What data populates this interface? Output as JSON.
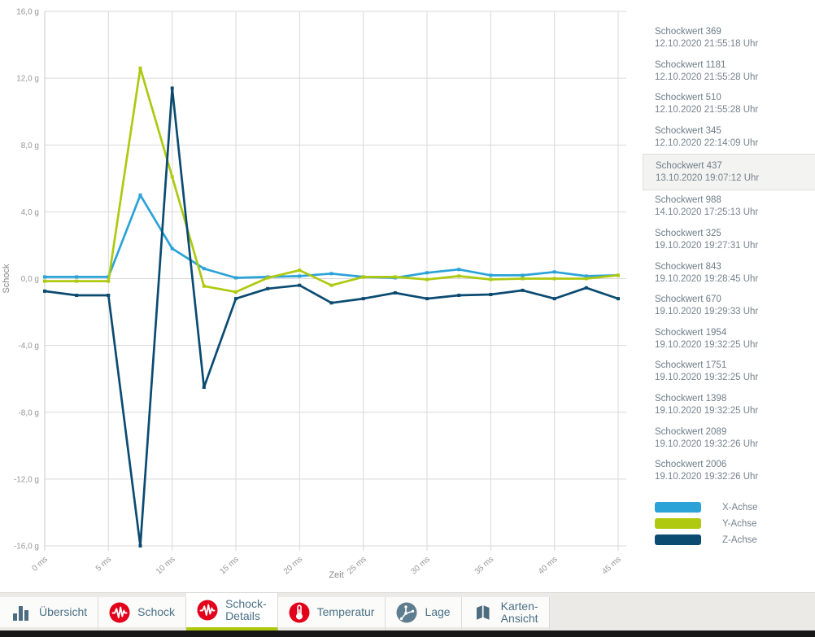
{
  "chart_data": {
    "type": "line",
    "title": "",
    "xlabel": "Zeit",
    "ylabel": "Schock",
    "grid": true,
    "legend_position": "bottom-right",
    "xlim": [
      0,
      45
    ],
    "ylim": [
      -16,
      16
    ],
    "x": [
      0,
      2.5,
      5,
      7.5,
      10,
      12.5,
      15,
      17.5,
      20,
      22.5,
      25,
      27.5,
      30,
      32.5,
      35,
      37.5,
      40,
      42.5,
      45
    ],
    "x_tick_values": [
      0,
      5,
      10,
      15,
      20,
      25,
      30,
      35,
      40,
      45
    ],
    "x_ticks": [
      "0 ms",
      "5 ms",
      "10 ms",
      "15 ms",
      "20 ms",
      "25 ms",
      "30 ms",
      "35 ms",
      "40 ms",
      "45 ms"
    ],
    "y_tick_values": [
      16,
      12,
      8,
      4,
      0,
      -4,
      -8,
      -12,
      -16
    ],
    "y_ticks": [
      "16,0 g",
      "12,0 g",
      "8,0 g",
      "4,0 g",
      "0,0 g",
      "-4,0 g",
      "-8,0 g",
      "-12,0 g",
      "-16,0 g"
    ],
    "series": [
      {
        "name": "X-Achse",
        "color": "#2ba3d9",
        "values": [
          0.1,
          0.1,
          0.1,
          5.0,
          1.8,
          0.6,
          0.05,
          0.1,
          0.15,
          0.3,
          0.1,
          0.05,
          0.35,
          0.55,
          0.2,
          0.2,
          0.4,
          0.15,
          0.2
        ]
      },
      {
        "name": "Y-Achse",
        "color": "#aec90f",
        "values": [
          -0.15,
          -0.15,
          -0.15,
          12.6,
          6.1,
          -0.45,
          -0.8,
          0.05,
          0.5,
          -0.4,
          0.1,
          0.1,
          -0.05,
          0.15,
          -0.05,
          0.0,
          0.0,
          0.0,
          0.2
        ]
      },
      {
        "name": "Z-Achse",
        "color": "#0b4b72",
        "values": [
          -0.75,
          -1.0,
          -1.0,
          -16.0,
          11.4,
          -6.5,
          -1.2,
          -0.6,
          -0.4,
          -1.45,
          -1.2,
          -0.85,
          -1.2,
          -1.0,
          -0.95,
          -0.7,
          -1.2,
          -0.55,
          -1.2
        ]
      }
    ]
  },
  "event_list": {
    "items": [
      {
        "label": "Schockwert 369",
        "time": "12.10.2020 21:55:18 Uhr",
        "selected": false
      },
      {
        "label": "Schockwert 1181",
        "time": "12.10.2020 21:55:28 Uhr",
        "selected": false
      },
      {
        "label": "Schockwert 510",
        "time": "12.10.2020 21:55:28 Uhr",
        "selected": false
      },
      {
        "label": "Schockwert 345",
        "time": "12.10.2020 22:14:09 Uhr",
        "selected": false
      },
      {
        "label": "Schockwert 437",
        "time": "13.10.2020 19:07:12 Uhr",
        "selected": true
      },
      {
        "label": "Schockwert 988",
        "time": "14.10.2020 17:25:13 Uhr",
        "selected": false
      },
      {
        "label": "Schockwert 325",
        "time": "19.10.2020 19:27:31 Uhr",
        "selected": false
      },
      {
        "label": "Schockwert 843",
        "time": "19.10.2020 19:28:45 Uhr",
        "selected": false
      },
      {
        "label": "Schockwert 670",
        "time": "19.10.2020 19:29:33 Uhr",
        "selected": false
      },
      {
        "label": "Schockwert 1954",
        "time": "19.10.2020 19:32:25 Uhr",
        "selected": false
      },
      {
        "label": "Schockwert 1751",
        "time": "19.10.2020 19:32:25 Uhr",
        "selected": false
      },
      {
        "label": "Schockwert 1398",
        "time": "19.10.2020 19:32:25 Uhr",
        "selected": false
      },
      {
        "label": "Schockwert 2089",
        "time": "19.10.2020 19:32:26 Uhr",
        "selected": false
      },
      {
        "label": "Schockwert 2006",
        "time": "19.10.2020 19:32:26 Uhr",
        "selected": false
      }
    ]
  },
  "legend": {
    "items": [
      {
        "label": "X-Achse",
        "color": "#2ba3d9"
      },
      {
        "label": "Y-Achse",
        "color": "#aec90f"
      },
      {
        "label": "Z-Achse",
        "color": "#0b4b72"
      }
    ]
  },
  "tabs": {
    "items": [
      {
        "id": "uebersicht",
        "lines": [
          "Übersicht"
        ],
        "icon": "bar-chart-icon",
        "active": false
      },
      {
        "id": "schock",
        "lines": [
          "Schock"
        ],
        "icon": "shock-icon",
        "active": false
      },
      {
        "id": "schock-details",
        "lines": [
          "Schock-",
          "Details"
        ],
        "icon": "shock-icon",
        "active": true
      },
      {
        "id": "temperatur",
        "lines": [
          "Temperatur"
        ],
        "icon": "thermometer-icon",
        "active": false
      },
      {
        "id": "lage",
        "lines": [
          "Lage"
        ],
        "icon": "position-axes-icon",
        "active": false
      },
      {
        "id": "karten-ansicht",
        "lines": [
          "Karten-",
          "Ansicht"
        ],
        "icon": "map-icon",
        "active": false
      }
    ]
  },
  "ui_colors": {
    "accent_green": "#aec90f",
    "brand_red": "#e2001a",
    "icon_slate": "#4d6c80",
    "lage_circle": "#5e7d8f",
    "selected_row_bg": "#f3f3f1",
    "grid_line": "#d9d9d9"
  }
}
